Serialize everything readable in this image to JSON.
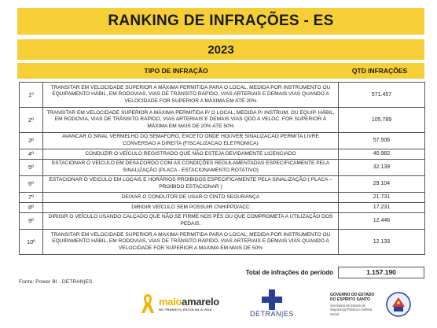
{
  "header": {
    "title": "RANKING DE INFRAÇÕES - ES",
    "year": "2023",
    "col_tipo": "TIPO DE INFRAÇÃO",
    "col_qtd": "QTD INFRAÇÕES"
  },
  "rows": [
    {
      "pos": "1º",
      "desc": "TRANSITAR EM VELOCIDADE SUPERIOR A MÁXIMA PERMITIDA PARA O LOCAL, MEDIDA POR INSTRUMENTO OU EQUIPAMENTO HÁBIL, EM RODOVIAS, VIAS DE TRÂNSITO RÁPIDO, VIAS ARTERIAIS E DEMAIS VIAS QUANDO A VELOCIDADE FOR SUPERIOR A MÁXIMA EM ATÉ 20%",
      "qtd": "571.457"
    },
    {
      "pos": "2º",
      "desc": "TRANSITAR EM VELOCIDADE SUPERIOR A MÁXIMA PERMITIDA P/ O LOCAL, MEDIDA P/ INSTRUM. OU EQUIP. HÁBIL, EM RODOVIA, VIAS DE TRÂNSITO RÁPIDO, VIAS ARTERIAIS E DEMAIS VIAS QDO A VELOC. FOR SUPERIOR À MÁXIMA EM MAIS DE  20% ATE 50%",
      "qtd": "105.789"
    },
    {
      "pos": "3º",
      "desc": "AVANCAR O SINAL VERMELHO DO SEMAFORO, EXCETO  ONDE HOUVER SINALIZACAO PERMITA LIVRE CONVERSAO A DIREITA (FISCALIZACAO ELETRONICA)",
      "qtd": "57.506"
    },
    {
      "pos": "4º",
      "desc": "CONDUZIR O VEÍCULO REGISTRADO QUE NÃO ESTEJA DEVIDAMENTE LICENCIADO",
      "qtd": "40.982"
    },
    {
      "pos": "5º",
      "desc": "ESTACIONAR O VEÍCULO EM DESACORDO COM AS CONDIÇÕES REGULAMENTADAS ESPECIFICAMENTE PELA SINALIZAÇÃO (PLACA - ESTACIONAMENTO ROTATIVO)",
      "qtd": "32.139"
    },
    {
      "pos": "6º",
      "desc": "ESTACIONAR O VEICULO EM LOCAIS E HORÁRIOS PROIBIDOS ESPECIFICAMENTE PELA SINALIZAÇÃO ( PLACA – PROIBIDO ESTACIONAR )",
      "qtd": "29.104"
    },
    {
      "pos": "7º",
      "desc": "DEIXAR O CONDUTOR DE USAR O CINTO SEGURANÇA",
      "qtd": "21.731"
    },
    {
      "pos": "8º",
      "desc": "DIRIGIR VEÍCULO SEM POSSUIR CNH/PPD/ACC",
      "qtd": "17.231"
    },
    {
      "pos": "9º",
      "desc": "DIRIGIR O VEÍCULO USANDO CALÇADO QUE NÃO SE FIRME NOS PÉS OU QUE COMPROMETA A UTILIZAÇÃO DOS PEDAIS.",
      "qtd": "12.446"
    },
    {
      "pos": "10º",
      "desc": "TRANSITAR EM VELOCIDADE SUPERIOR A MAXIMA PERMITIDA PARA O LOCAL, MEDIDA POR INSTRUMENTO OU EQUIPAMENTO HÁBIL, EM RODOVIAS, VIAS DE TRÂNSITO RÁPIDO, VIAS ARTERIAIS E DEMAIS VIAS QUANDO A VELOCIDADE FOR SUPERIOR A MAXIMA EM MAIS DE 50%",
      "qtd": "12.133"
    }
  ],
  "total": {
    "label": "Total de infrações do período",
    "value": "1.157.190"
  },
  "fonte": "Fonte: Power BI - DETRAN|ES",
  "logos": {
    "maio_name_a": "maio",
    "maio_name_b": "amarelo",
    "maio_tag": "NO TRÂNSITO ESCOLHA A VIDA",
    "detran_name": "DETRAN|ES",
    "gov_line1": "GOVERNO DO ESTADO DO ESPÍRITO SANTO",
    "gov_line2": "Secretaria de Estado de Segurança Pública e Defesa Social",
    "colors": {
      "yellow": "#f6cf36",
      "detran_blue": "#2a3f8f"
    }
  }
}
